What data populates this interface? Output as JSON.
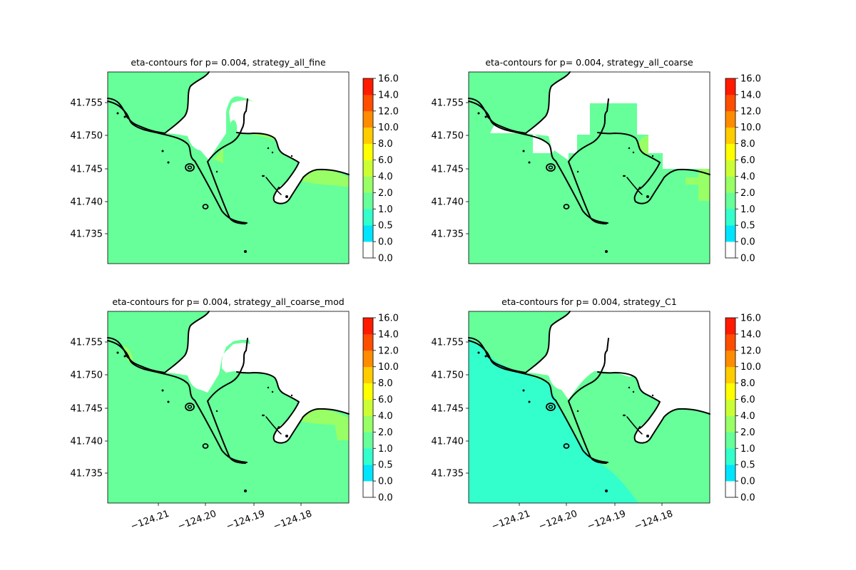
{
  "color_scale": {
    "levels": [
      0.0,
      0.0,
      0.5,
      1.0,
      2.0,
      4.0,
      6.0,
      8.0,
      10.0,
      12.0,
      14.0,
      16.0
    ],
    "tick_labels": [
      "0.0",
      "0.0",
      "0.5",
      "1.0",
      "2.0",
      "4.0",
      "6.0",
      "8.0",
      "10.0",
      "12.0",
      "14.0",
      "16.0"
    ],
    "colors": [
      "#ffffff",
      "#00e5ff",
      "#33ffcc",
      "#66ff99",
      "#99ff66",
      "#ccff33",
      "#ffff00",
      "#ffcc00",
      "#ff8c00",
      "#ff4d00",
      "#ff1a00"
    ]
  },
  "y_ticks": [
    "41.755",
    "41.750",
    "41.745",
    "41.740",
    "41.735"
  ],
  "x_ticks": [
    "−124.21",
    "−124.20",
    "−124.19",
    "−124.18"
  ],
  "panels": [
    {
      "title": "eta-contours for p= 0.004, strategy_all_fine",
      "variant": "fine"
    },
    {
      "title": "eta-contours for p= 0.004, strategy_all_coarse",
      "variant": "coarse"
    },
    {
      "title": "eta-contours for p= 0.004, strategy_all_coarse_mod",
      "variant": "coarse_mod"
    },
    {
      "title": "eta-contours for p= 0.004, strategy_C1",
      "variant": "c1"
    }
  ]
}
